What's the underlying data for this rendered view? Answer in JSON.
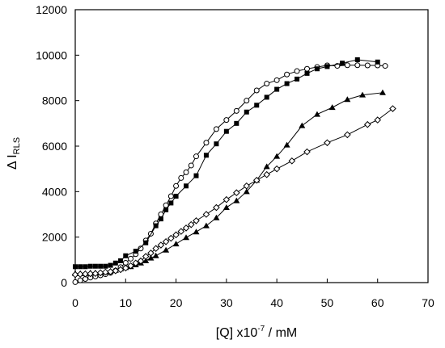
{
  "chart_data": {
    "type": "scatter",
    "title": "",
    "xlabel": {
      "prefix": "[Q] x10",
      "superscript": "-7",
      "suffix": " / mM"
    },
    "ylabel": {
      "main": "Δ I",
      "subscript": "RLS"
    },
    "xlim": [
      0,
      70
    ],
    "ylim": [
      0,
      12000
    ],
    "xticks": [
      0,
      10,
      20,
      30,
      40,
      50,
      60,
      70
    ],
    "yticks": [
      0,
      2000,
      4000,
      6000,
      8000,
      10000,
      12000
    ],
    "grid": false,
    "legend": "none",
    "series": [
      {
        "marker": "open-circle",
        "color": "#000000",
        "points": [
          [
            0,
            20
          ],
          [
            1,
            100
          ],
          [
            2,
            160
          ],
          [
            3,
            220
          ],
          [
            4,
            270
          ],
          [
            5,
            320
          ],
          [
            6,
            370
          ],
          [
            7,
            430
          ],
          [
            8,
            530
          ],
          [
            9,
            680
          ],
          [
            10,
            870
          ],
          [
            11,
            1050
          ],
          [
            12,
            1250
          ],
          [
            13,
            1500
          ],
          [
            14,
            1850
          ],
          [
            15,
            2150
          ],
          [
            16,
            2600
          ],
          [
            17,
            3000
          ],
          [
            18,
            3400
          ],
          [
            19,
            3800
          ],
          [
            20,
            4250
          ],
          [
            21,
            4600
          ],
          [
            22,
            4850
          ],
          [
            23,
            5150
          ],
          [
            24,
            5550
          ],
          [
            26,
            6150
          ],
          [
            28,
            6750
          ],
          [
            30,
            7150
          ],
          [
            32,
            7550
          ],
          [
            34,
            8000
          ],
          [
            36,
            8450
          ],
          [
            38,
            8750
          ],
          [
            40,
            8900
          ],
          [
            42,
            9150
          ],
          [
            44,
            9300
          ],
          [
            46,
            9400
          ],
          [
            48,
            9480
          ],
          [
            50,
            9550
          ],
          [
            52,
            9530
          ],
          [
            54,
            9560
          ],
          [
            56,
            9560
          ],
          [
            58,
            9550
          ],
          [
            60,
            9550
          ],
          [
            61.5,
            9530
          ]
        ]
      },
      {
        "marker": "filled-square",
        "color": "#000000",
        "points": [
          [
            0,
            700
          ],
          [
            1,
            700
          ],
          [
            2,
            700
          ],
          [
            3,
            720
          ],
          [
            4,
            720
          ],
          [
            5,
            720
          ],
          [
            6,
            720
          ],
          [
            7,
            760
          ],
          [
            8,
            860
          ],
          [
            9,
            960
          ],
          [
            10,
            1180
          ],
          [
            12,
            1380
          ],
          [
            14,
            1750
          ],
          [
            16,
            2500
          ],
          [
            17,
            2800
          ],
          [
            18,
            3200
          ],
          [
            19,
            3500
          ],
          [
            20,
            3800
          ],
          [
            22,
            4250
          ],
          [
            24,
            4700
          ],
          [
            26,
            5600
          ],
          [
            28,
            6100
          ],
          [
            30,
            6650
          ],
          [
            32,
            7000
          ],
          [
            34,
            7500
          ],
          [
            36,
            7800
          ],
          [
            38,
            8150
          ],
          [
            40,
            8500
          ],
          [
            42,
            8750
          ],
          [
            44,
            8950
          ],
          [
            46,
            9200
          ],
          [
            48,
            9400
          ],
          [
            50,
            9500
          ],
          [
            53,
            9650
          ],
          [
            56,
            9800
          ],
          [
            60,
            9700
          ]
        ]
      },
      {
        "marker": "filled-triangle",
        "color": "#000000",
        "points": [
          [
            0,
            400
          ],
          [
            1,
            400
          ],
          [
            2,
            400
          ],
          [
            3,
            430
          ],
          [
            4,
            430
          ],
          [
            5,
            440
          ],
          [
            6,
            460
          ],
          [
            7,
            500
          ],
          [
            8,
            540
          ],
          [
            9,
            600
          ],
          [
            10,
            660
          ],
          [
            11,
            700
          ],
          [
            12,
            780
          ],
          [
            13,
            860
          ],
          [
            14,
            960
          ],
          [
            15,
            1080
          ],
          [
            16,
            1180
          ],
          [
            18,
            1430
          ],
          [
            20,
            1700
          ],
          [
            22,
            1980
          ],
          [
            24,
            2230
          ],
          [
            26,
            2500
          ],
          [
            28,
            2850
          ],
          [
            30,
            3300
          ],
          [
            32,
            3600
          ],
          [
            34,
            4000
          ],
          [
            36,
            4500
          ],
          [
            38,
            5100
          ],
          [
            40,
            5550
          ],
          [
            42,
            6050
          ],
          [
            45,
            6900
          ],
          [
            48,
            7400
          ],
          [
            51,
            7700
          ],
          [
            54,
            8050
          ],
          [
            57,
            8250
          ],
          [
            61,
            8350
          ]
        ]
      },
      {
        "marker": "open-diamond",
        "color": "#000000",
        "points": [
          [
            0,
            350
          ],
          [
            1,
            370
          ],
          [
            2,
            380
          ],
          [
            3,
            390
          ],
          [
            4,
            400
          ],
          [
            5,
            430
          ],
          [
            6,
            460
          ],
          [
            7,
            480
          ],
          [
            8,
            520
          ],
          [
            9,
            570
          ],
          [
            10,
            640
          ],
          [
            11,
            740
          ],
          [
            12,
            860
          ],
          [
            13,
            950
          ],
          [
            14,
            1150
          ],
          [
            15,
            1300
          ],
          [
            16,
            1500
          ],
          [
            17,
            1650
          ],
          [
            18,
            1800
          ],
          [
            19,
            1950
          ],
          [
            20,
            2100
          ],
          [
            21,
            2250
          ],
          [
            22,
            2400
          ],
          [
            23,
            2550
          ],
          [
            24,
            2720
          ],
          [
            26,
            3000
          ],
          [
            28,
            3300
          ],
          [
            30,
            3650
          ],
          [
            32,
            3950
          ],
          [
            34,
            4250
          ],
          [
            36,
            4500
          ],
          [
            38,
            4750
          ],
          [
            40,
            5000
          ],
          [
            43,
            5350
          ],
          [
            46,
            5750
          ],
          [
            50,
            6150
          ],
          [
            54,
            6500
          ],
          [
            58,
            6950
          ],
          [
            60,
            7150
          ],
          [
            63,
            7650
          ]
        ]
      }
    ]
  }
}
